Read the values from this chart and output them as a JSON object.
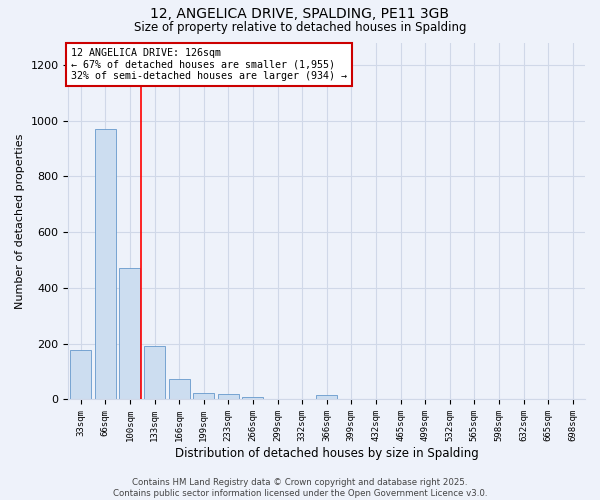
{
  "title_line1": "12, ANGELICA DRIVE, SPALDING, PE11 3GB",
  "title_line2": "Size of property relative to detached houses in Spalding",
  "xlabel": "Distribution of detached houses by size in Spalding",
  "ylabel": "Number of detached properties",
  "categories": [
    "33sqm",
    "66sqm",
    "100sqm",
    "133sqm",
    "166sqm",
    "199sqm",
    "233sqm",
    "266sqm",
    "299sqm",
    "332sqm",
    "366sqm",
    "399sqm",
    "432sqm",
    "465sqm",
    "499sqm",
    "532sqm",
    "565sqm",
    "598sqm",
    "632sqm",
    "665sqm",
    "698sqm"
  ],
  "values": [
    178,
    970,
    470,
    190,
    75,
    25,
    18,
    10,
    0,
    0,
    15,
    0,
    0,
    0,
    0,
    0,
    0,
    0,
    0,
    0,
    0
  ],
  "bar_color": "#ccddf0",
  "bar_edge_color": "#6699cc",
  "grid_color": "#d0d8e8",
  "bg_color": "#eef2fa",
  "annotation_text_line1": "12 ANGELICA DRIVE: 126sqm",
  "annotation_text_line2": "← 67% of detached houses are smaller (1,955)",
  "annotation_text_line3": "32% of semi-detached houses are larger (934) →",
  "annotation_box_color": "#ffffff",
  "annotation_border_color": "#cc0000",
  "footer_line1": "Contains HM Land Registry data © Crown copyright and database right 2025.",
  "footer_line2": "Contains public sector information licensed under the Open Government Licence v3.0.",
  "ylim": [
    0,
    1280
  ],
  "yticks": [
    0,
    200,
    400,
    600,
    800,
    1000,
    1200
  ],
  "red_line_x": 2.45
}
